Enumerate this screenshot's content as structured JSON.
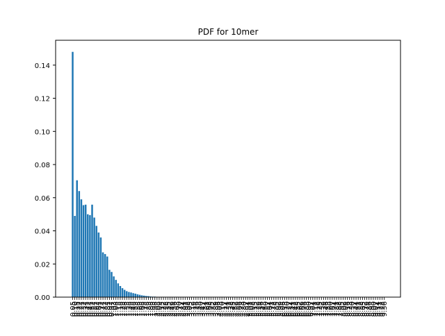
{
  "chart_data": {
    "type": "bar",
    "title": "PDF for 10mer",
    "xlabel": "",
    "ylabel": "",
    "ylim": [
      0.0,
      0.155
    ],
    "yticks": [
      "0.00",
      "0.02",
      "0.04",
      "0.06",
      "0.08",
      "0.10",
      "0.12",
      "0.14"
    ],
    "grid": false,
    "colors": {
      "bar": "#1f77b4",
      "axis": "#000000",
      "background": "#ffffff"
    },
    "categories": [
      "0.05",
      "0.10",
      "0.15",
      "0.22",
      "0.27",
      "0.32",
      "0.37",
      "0.42",
      "0.47",
      "0.52",
      "0.57",
      "0.62",
      "0.67",
      "0.72",
      "0.77",
      "0.82",
      "0.87",
      "0.92",
      "0.97",
      "1.03",
      "1.08",
      "1.13",
      "1.18",
      "1.23",
      "1.28",
      "1.33",
      "1.38",
      "1.43",
      "1.48",
      "1.53",
      "1.58",
      "1.63",
      "1.68",
      "1.73",
      "1.78",
      "1.83",
      "1.88",
      "1.93",
      "1.98",
      "2.03",
      "2.09",
      "2.15",
      "2.22",
      "2.28",
      "2.35",
      "2.42",
      "2.49",
      "2.56",
      "2.63",
      "2.70",
      "2.77",
      "2.84",
      "2.91",
      "2.98",
      "3.05",
      "3.12",
      "3.19",
      "3.26",
      "3.33",
      "3.40",
      "3.47",
      "3.54",
      "3.61",
      "3.68",
      "3.75",
      "3.82",
      "3.89",
      "3.96",
      "4.03",
      "4.10",
      "4.17",
      "4.24",
      "4.31",
      "4.38",
      "4.45",
      "4.52",
      "4.59",
      "4.66",
      "4.73",
      "4.80",
      "4.87",
      "4.94",
      "5.01",
      "5.08",
      "5.15",
      "5.22",
      "5.29",
      "5.36",
      "5.43",
      "5.50",
      "5.57",
      "5.64",
      "5.71",
      "5.78",
      "5.85",
      "5.92",
      "5.99",
      "6.06",
      "6.13",
      "6.20",
      "6.27",
      "6.34",
      "6.41",
      "6.48",
      "6.55",
      "6.62",
      "6.69",
      "6.76",
      "6.83",
      "6.90",
      "6.97",
      "7.04",
      "7.11",
      "7.18",
      "7.25",
      "7.32",
      "7.39",
      "7.46",
      "7.53",
      "7.60",
      "7.67",
      "7.74",
      "7.81",
      "7.88",
      "7.95",
      "8.02",
      "8.09",
      "8.16",
      "8.23",
      "8.30",
      "8.37",
      "8.44",
      "8.51",
      "8.58",
      "8.65",
      "8.72",
      "8.79",
      "8.86",
      "8.93",
      "9.00",
      "9.07",
      "9.14",
      "9.21",
      "9.28",
      "9.36"
    ],
    "values": [
      0.148,
      0.049,
      0.0705,
      0.064,
      0.059,
      0.0555,
      0.0558,
      0.05,
      0.0495,
      0.0558,
      0.048,
      0.043,
      0.039,
      0.036,
      0.027,
      0.026,
      0.0245,
      0.0165,
      0.0152,
      0.0125,
      0.0104,
      0.0083,
      0.0067,
      0.0054,
      0.0044,
      0.0036,
      0.0031,
      0.0028,
      0.0024,
      0.0021,
      0.0017,
      0.0014,
      0.0011,
      0.0009,
      0.0007,
      0.0006,
      0.0004,
      0.0003,
      0.0003,
      0.0002,
      0.0002,
      0.0001,
      0.0001,
      0.0001,
      0.0001,
      8e-05,
      7e-05,
      6e-05,
      5e-05,
      4e-05,
      3e-05,
      3e-05,
      2e-05,
      2e-05,
      2e-05,
      1e-05,
      1e-05,
      1e-05,
      1e-05,
      1e-05,
      0,
      0,
      0,
      0,
      0,
      0,
      0,
      0,
      0,
      0,
      0,
      0,
      0,
      0,
      0,
      0,
      0,
      0,
      0,
      0,
      0,
      0,
      0,
      0,
      0,
      0,
      0,
      0,
      0,
      0,
      0,
      0,
      0,
      0,
      0,
      0,
      0,
      0,
      0,
      0,
      0,
      0,
      0,
      0,
      0,
      0,
      0,
      0,
      0,
      0,
      0,
      0,
      0,
      0,
      0,
      0,
      0,
      0,
      0,
      0,
      0,
      0,
      0,
      0,
      0,
      0,
      0,
      0,
      0,
      0,
      0,
      0,
      0,
      0,
      0,
      0,
      0,
      0,
      0,
      0,
      0,
      0,
      0,
      0,
      0
    ]
  }
}
